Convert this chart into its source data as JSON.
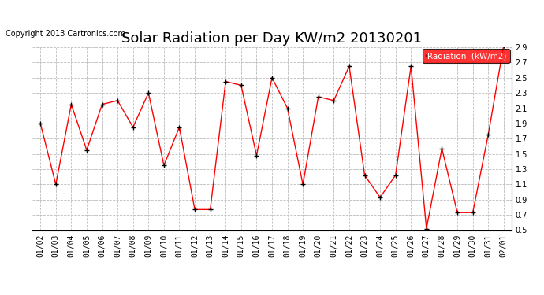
{
  "title": "Solar Radiation per Day KW/m2 20130201",
  "copyright": "Copyright 2013 Cartronics.com",
  "legend_label": "Radiation  (kW/m2)",
  "ylim": [
    0.5,
    2.9
  ],
  "yticks": [
    0.5,
    0.7,
    0.9,
    1.1,
    1.3,
    1.5,
    1.7,
    1.9,
    2.1,
    2.3,
    2.5,
    2.7,
    2.9
  ],
  "dates": [
    "01/02",
    "01/03",
    "01/04",
    "01/05",
    "01/06",
    "01/07",
    "01/08",
    "01/09",
    "01/10",
    "01/11",
    "01/12",
    "01/13",
    "01/14",
    "01/15",
    "01/16",
    "01/17",
    "01/18",
    "01/19",
    "01/20",
    "01/21",
    "01/22",
    "01/23",
    "01/24",
    "01/25",
    "01/26",
    "01/27",
    "01/28",
    "01/29",
    "01/30",
    "01/31",
    "02/01"
  ],
  "values": [
    1.9,
    1.1,
    2.15,
    1.55,
    2.15,
    2.2,
    1.85,
    2.3,
    1.35,
    1.85,
    0.77,
    0.77,
    2.45,
    2.4,
    1.48,
    2.5,
    2.1,
    1.1,
    2.25,
    2.2,
    2.65,
    1.22,
    0.93,
    1.22,
    2.65,
    0.52,
    1.57,
    0.73,
    0.73,
    1.75,
    2.92
  ],
  "line_color": "red",
  "marker_color": "black",
  "bg_color": "white",
  "grid_color": "#bbbbbb",
  "title_fontsize": 13,
  "tick_fontsize": 7,
  "copyright_fontsize": 7,
  "legend_fontsize": 7.5
}
